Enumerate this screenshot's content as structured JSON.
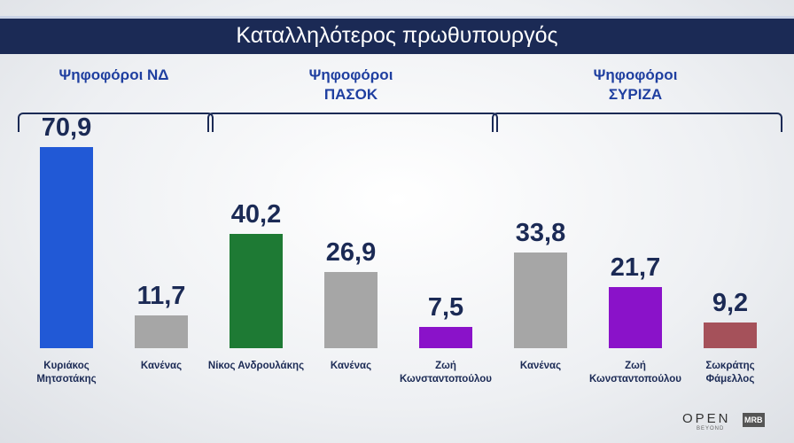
{
  "chart_data": {
    "type": "bar",
    "title": "Καταλληλότερος πρωθυπουργός",
    "groups": [
      {
        "name": "Ψηφοφόροι ΝΔ",
        "categories": [
          "Κυριάκος Μητσοτάκης",
          "Κανένας"
        ],
        "values": [
          70.9,
          11.7
        ],
        "value_labels": [
          "70,9",
          "11,7"
        ],
        "colors": [
          "#2159d6",
          "#a6a6a6"
        ]
      },
      {
        "name": "Ψηφοφόροι ΠΑΣΟΚ",
        "categories": [
          "Νίκος Ανδρουλάκης",
          "Κανένας",
          "Ζωή Κωνσταντοπούλου"
        ],
        "values": [
          40.2,
          26.9,
          7.5
        ],
        "value_labels": [
          "40,2",
          "26,9",
          "7,5"
        ],
        "colors": [
          "#1e7a34",
          "#a6a6a6",
          "#8a12c9"
        ]
      },
      {
        "name": "Ψηφοφόροι ΣΥΡΙΖΑ",
        "categories": [
          "Κανένας",
          "Ζωή Κωνσταντοπούλου",
          "Σωκράτης Φάμελλος"
        ],
        "values": [
          33.8,
          21.7,
          9.2
        ],
        "value_labels": [
          "33,8",
          "21,7",
          "9,2"
        ],
        "colors": [
          "#a6a6a6",
          "#8a12c9",
          "#a5515a"
        ]
      }
    ]
  },
  "logos": [
    "OPEN",
    "BEYOND",
    "MRB"
  ]
}
